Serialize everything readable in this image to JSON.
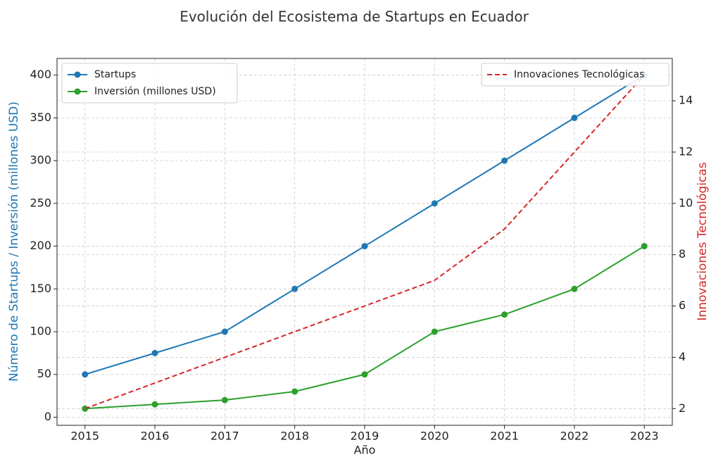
{
  "chart_data": {
    "type": "line",
    "title": "Evolución del Ecosistema de Startups en Ecuador",
    "xlabel": "Año",
    "ylabel": "Número de Startups / Inversión (millones USD)",
    "y2label": "Innovaciones Tecnológicas",
    "x": [
      2015,
      2016,
      2017,
      2018,
      2019,
      2020,
      2021,
      2022,
      2023
    ],
    "series": [
      {
        "name": "Startups",
        "color": "#1f77b4",
        "marker": "circle",
        "values": [
          50,
          75,
          100,
          150,
          200,
          250,
          300,
          350,
          400
        ]
      },
      {
        "name": "Inversión (millones USD)",
        "color": "#2ca02c",
        "marker": "circle",
        "values": [
          10,
          15,
          20,
          30,
          50,
          100,
          120,
          150,
          200
        ]
      },
      {
        "name": "Innovaciones Tecnológicas",
        "color": "#d62728",
        "linestyle": "dashed",
        "axis": "y2",
        "values": [
          2,
          3,
          4,
          5,
          6,
          7,
          9,
          12,
          15
        ]
      }
    ],
    "xlim": [
      2014.6,
      2023.4
    ],
    "xticks": [
      2015,
      2016,
      2017,
      2018,
      2019,
      2020,
      2021,
      2022,
      2023
    ],
    "ylim": [
      -9.5,
      419.5
    ],
    "yticks": [
      0,
      50,
      100,
      150,
      200,
      250,
      300,
      350,
      400
    ],
    "y2lim": [
      1.35,
      15.65
    ],
    "y2ticks": [
      2,
      4,
      6,
      8,
      10,
      12,
      14
    ],
    "grid": true,
    "legend": "upper left",
    "legend2": "upper right"
  }
}
